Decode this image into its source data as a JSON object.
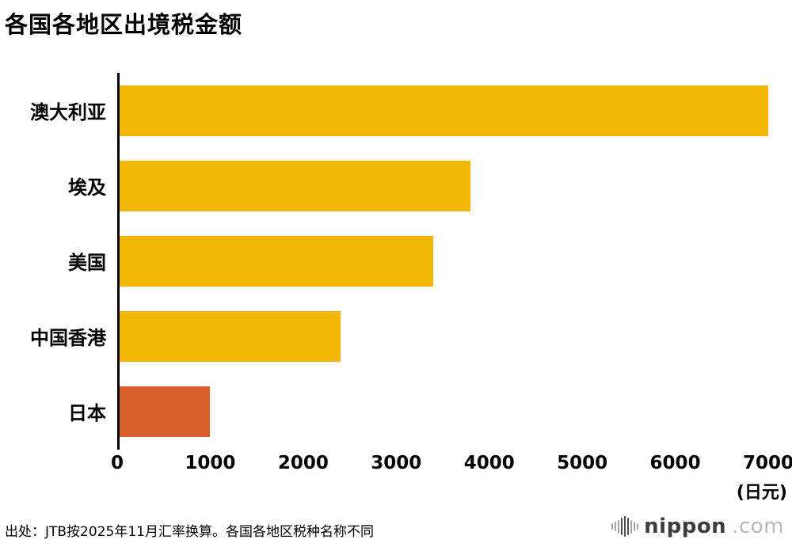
{
  "title": "各国各地区出境税金额",
  "chart_data": {
    "type": "bar",
    "orientation": "horizontal",
    "title": "各国各地区出境税金额",
    "categories": [
      "澳大利亚",
      "埃及",
      "美国",
      "中国香港",
      "日本"
    ],
    "values": [
      7000,
      3800,
      3400,
      2400,
      1000
    ],
    "bar_colors": [
      "#F2B705",
      "#F2B705",
      "#F2B705",
      "#F2B705",
      "#D7602C"
    ],
    "xlim": [
      0,
      7000
    ],
    "xticks": [
      0,
      1000,
      2000,
      3000,
      4000,
      5000,
      6000,
      7000
    ],
    "unit_label": "(日元)",
    "xlabel": "",
    "ylabel": "",
    "grid": false,
    "legend": false
  },
  "footer": {
    "source_note": "出处：JTB按2025年11月汇率换算。各国各地区税种名称不同"
  },
  "logo": {
    "icon": "waveform-icon",
    "text_main": "nippon",
    "text_suffix": ".com"
  },
  "colors": {
    "bar_default": "#F2B705",
    "bar_highlight": "#D7602C",
    "axis": "#000000",
    "background": "#FFFFFF"
  }
}
